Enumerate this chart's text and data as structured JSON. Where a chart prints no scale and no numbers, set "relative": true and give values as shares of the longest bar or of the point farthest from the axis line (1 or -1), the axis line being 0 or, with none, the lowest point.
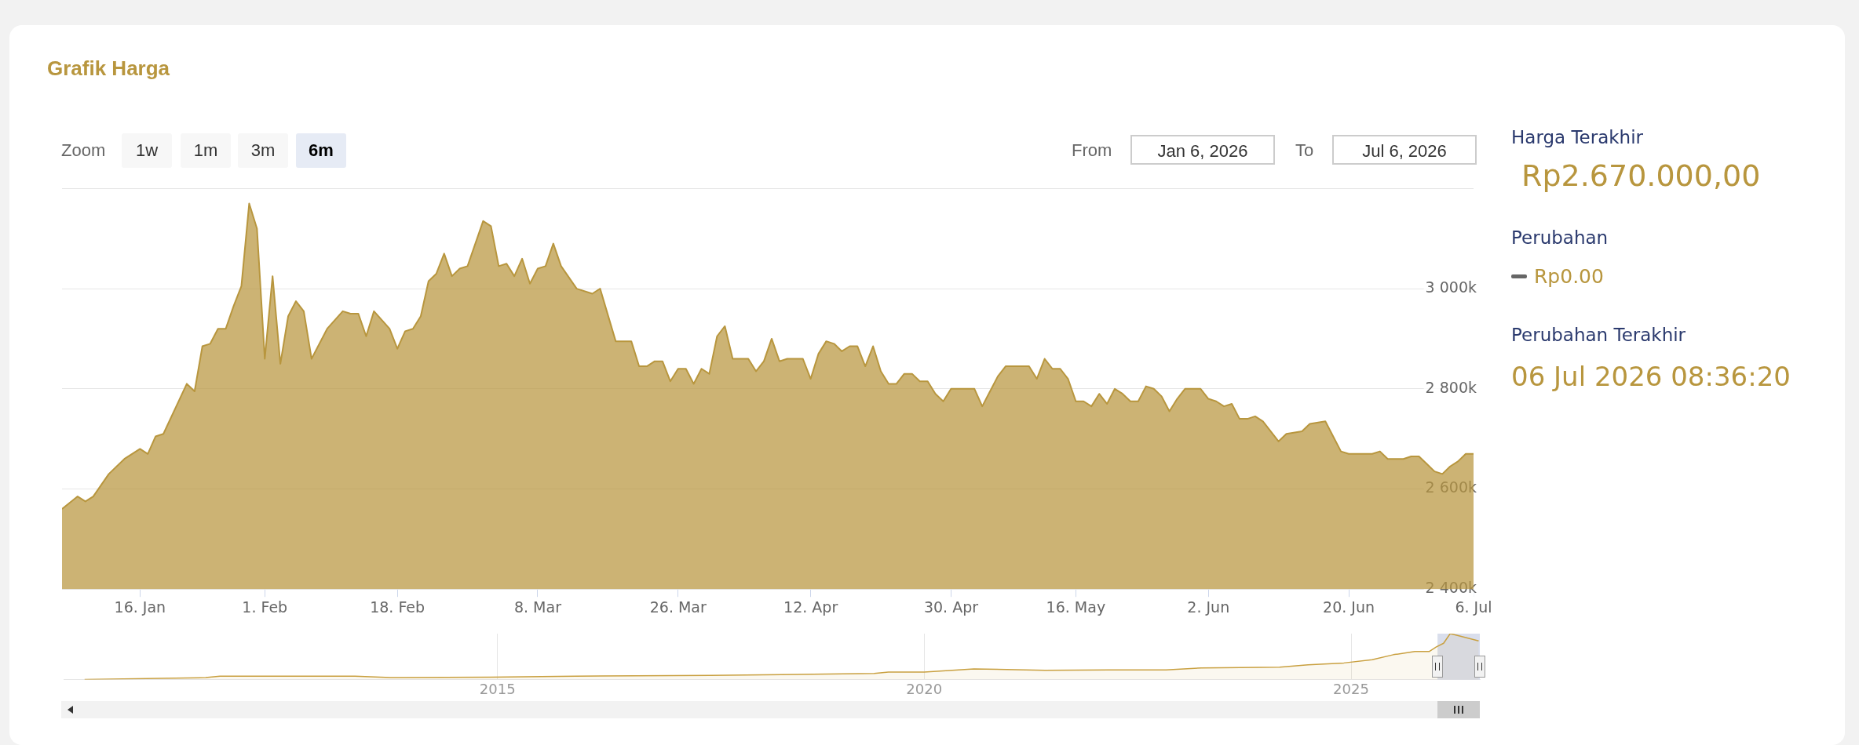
{
  "chart_data": [
    {
      "type": "area",
      "title": "Grafik Harga",
      "annotations": [
        "Zoom",
        "1w",
        "1m",
        "3m",
        "6m",
        "From",
        "Jan 6, 2026",
        "To",
        "Jul 6, 2026"
      ],
      "x": [
        "2026-01-06",
        "2026-01-08",
        "2026-01-09",
        "2026-01-10",
        "2026-01-12",
        "2026-01-14",
        "2026-01-16",
        "2026-01-17",
        "2026-01-18",
        "2026-01-19",
        "2026-01-22",
        "2026-01-23",
        "2026-01-24",
        "2026-01-25",
        "2026-01-26",
        "2026-01-27",
        "2026-01-28",
        "2026-01-29",
        "2026-01-30",
        "2026-01-31",
        "2026-02-01",
        "2026-02-02",
        "2026-02-03",
        "2026-02-04",
        "2026-02-05",
        "2026-02-06",
        "2026-02-07",
        "2026-02-09",
        "2026-02-11",
        "2026-02-12",
        "2026-02-13",
        "2026-02-14",
        "2026-02-15",
        "2026-02-17",
        "2026-02-18",
        "2026-02-19",
        "2026-02-20",
        "2026-02-21",
        "2026-02-22",
        "2026-02-23",
        "2026-02-24",
        "2026-02-25",
        "2026-02-26",
        "2026-02-27",
        "2026-03-01",
        "2026-03-02",
        "2026-03-03",
        "2026-03-04",
        "2026-03-05",
        "2026-03-06",
        "2026-03-07",
        "2026-03-08",
        "2026-03-09",
        "2026-03-10",
        "2026-03-11",
        "2026-03-13",
        "2026-03-15",
        "2026-03-16",
        "2026-03-18",
        "2026-03-20",
        "2026-03-21",
        "2026-03-22",
        "2026-03-23",
        "2026-03-24",
        "2026-03-25",
        "2026-03-26",
        "2026-03-27",
        "2026-03-28",
        "2026-03-29",
        "2026-03-30",
        "2026-03-31",
        "2026-04-01",
        "2026-04-02",
        "2026-04-04",
        "2026-04-05",
        "2026-04-06",
        "2026-04-07",
        "2026-04-08",
        "2026-04-09",
        "2026-04-11",
        "2026-04-12",
        "2026-04-13",
        "2026-04-14",
        "2026-04-15",
        "2026-04-16",
        "2026-04-17",
        "2026-04-18",
        "2026-04-19",
        "2026-04-20",
        "2026-04-21",
        "2026-04-22",
        "2026-04-23",
        "2026-04-24",
        "2026-04-25",
        "2026-04-26",
        "2026-04-27",
        "2026-04-28",
        "2026-04-29",
        "2026-04-30",
        "2026-05-01",
        "2026-05-03",
        "2026-05-04",
        "2026-05-05",
        "2026-05-06",
        "2026-05-07",
        "2026-05-10",
        "2026-05-11",
        "2026-05-12",
        "2026-05-13",
        "2026-05-14",
        "2026-05-15",
        "2026-05-16",
        "2026-05-17",
        "2026-05-18",
        "2026-05-19",
        "2026-05-20",
        "2026-05-21",
        "2026-05-22",
        "2026-05-23",
        "2026-05-24",
        "2026-05-25",
        "2026-05-26",
        "2026-05-27",
        "2026-05-28",
        "2026-05-29",
        "2026-05-30",
        "2026-06-01",
        "2026-06-02",
        "2026-06-03",
        "2026-06-04",
        "2026-06-05",
        "2026-06-06",
        "2026-06-07",
        "2026-06-08",
        "2026-06-09",
        "2026-06-10",
        "2026-06-11",
        "2026-06-12",
        "2026-06-14",
        "2026-06-15",
        "2026-06-17",
        "2026-06-18",
        "2026-06-19",
        "2026-06-20",
        "2026-06-23",
        "2026-06-24",
        "2026-06-25",
        "2026-06-27",
        "2026-06-28",
        "2026-06-29",
        "2026-06-30",
        "2026-07-01",
        "2026-07-02",
        "2026-07-03",
        "2026-07-04",
        "2026-07-05",
        "2026-07-06"
      ],
      "series": [
        {
          "color": "#b8963e",
          "values": [
            2560000,
            2585000,
            2575000,
            2585000,
            2630000,
            2660000,
            2680000,
            2670000,
            2705000,
            2710000,
            2810000,
            2795000,
            2885000,
            2890000,
            2920000,
            2920000,
            2965000,
            3005000,
            3170000,
            3120000,
            2860000,
            3025000,
            2850000,
            2945000,
            2975000,
            2955000,
            2860000,
            2920000,
            2955000,
            2950000,
            2950000,
            2905000,
            2955000,
            2920000,
            2880000,
            2915000,
            2920000,
            2945000,
            3015000,
            3030000,
            3070000,
            3025000,
            3040000,
            3045000,
            3135000,
            3125000,
            3045000,
            3050000,
            3025000,
            3060000,
            3010000,
            3040000,
            3045000,
            3090000,
            3045000,
            3000000,
            2990000,
            3000000,
            2895000,
            2895000,
            2845000,
            2845000,
            2855000,
            2855000,
            2815000,
            2840000,
            2840000,
            2810000,
            2840000,
            2830000,
            2905000,
            2925000,
            2860000,
            2860000,
            2835000,
            2855000,
            2900000,
            2855000,
            2860000,
            2860000,
            2820000,
            2870000,
            2895000,
            2890000,
            2875000,
            2885000,
            2885000,
            2845000,
            2885000,
            2835000,
            2810000,
            2810000,
            2830000,
            2830000,
            2815000,
            2815000,
            2790000,
            2775000,
            2800000,
            2800000,
            2800000,
            2765000,
            2795000,
            2825000,
            2845000,
            2845000,
            2820000,
            2860000,
            2840000,
            2840000,
            2820000,
            2775000,
            2775000,
            2765000,
            2790000,
            2770000,
            2800000,
            2790000,
            2775000,
            2775000,
            2805000,
            2800000,
            2785000,
            2755000,
            2780000,
            2800000,
            2800000,
            2780000,
            2775000,
            2765000,
            2770000,
            2740000,
            2740000,
            2745000,
            2735000,
            2715000,
            2695000,
            2710000,
            2715000,
            2730000,
            2735000,
            2705000,
            2675000,
            2670000,
            2670000,
            2675000,
            2660000,
            2660000,
            2665000,
            2665000,
            2650000,
            2635000,
            2630000,
            2645000,
            2655000,
            2670000,
            2670000
          ]
        }
      ],
      "xlim": [
        "2026-01-06",
        "2026-07-06"
      ],
      "xticks": [
        {
          "value": "2026-01-16",
          "label": "16. Jan"
        },
        {
          "value": "2026-02-01",
          "label": "1. Feb"
        },
        {
          "value": "2026-02-18",
          "label": "18. Feb"
        },
        {
          "value": "2026-03-08",
          "label": "8. Mar"
        },
        {
          "value": "2026-03-26",
          "label": "26. Mar"
        },
        {
          "value": "2026-04-12",
          "label": "12. Apr"
        },
        {
          "value": "2026-04-30",
          "label": "30. Apr"
        },
        {
          "value": "2026-05-16",
          "label": "16. May"
        },
        {
          "value": "2026-06-02",
          "label": "2. Jun"
        },
        {
          "value": "2026-06-20",
          "label": "20. Jun"
        },
        {
          "value": "2026-07-06",
          "label": "6. Jul"
        }
      ],
      "ylim": [
        2400000,
        3200000
      ],
      "yticks": [
        {
          "value": 2400000,
          "label": "2 400k"
        },
        {
          "value": 2600000,
          "label": "2 600k"
        },
        {
          "value": 2800000,
          "label": "2 800k"
        },
        {
          "value": 3000000,
          "label": "3 000k"
        },
        {
          "value": 3200000,
          "label": null
        }
      ],
      "grid": "y",
      "marker": "none"
    },
    {
      "type": "area",
      "relative": true,
      "x": [
        "2010-03",
        "2011-08",
        "2011-10",
        "2013-05",
        "2013-10",
        "2014-12",
        "2015-12",
        "2017-07",
        "2019-06",
        "2019-08",
        "2020-01",
        "2020-08",
        "2021-06",
        "2022-03",
        "2022-11",
        "2023-04",
        "2024-03",
        "2024-07",
        "2024-12",
        "2025-04",
        "2025-07",
        "2025-10",
        "2025-12",
        "2026-01",
        "2026-02",
        "2026-03",
        "2026-04",
        "2026-07"
      ],
      "series": [
        {
          "color": "#c9a040",
          "values": [
            0,
            0.04,
            0.07,
            0.07,
            0.04,
            0.05,
            0.07,
            0.09,
            0.13,
            0.16,
            0.16,
            0.23,
            0.2,
            0.21,
            0.21,
            0.25,
            0.27,
            0.32,
            0.36,
            0.43,
            0.54,
            0.61,
            0.61,
            0.71,
            0.79,
            1,
            0.96,
            0.84
          ]
        }
      ],
      "xlim": [
        "2009-12",
        "2026-07-06"
      ],
      "xticks": [
        "2015",
        "2020",
        "2025"
      ],
      "grid": "x",
      "marker": "none",
      "bands": [
        {
          "axis": "x",
          "from": "2026-01-06",
          "to": "2026-07-06",
          "color": "#ccd3e6"
        }
      ]
    },
    {
      "type": "other",
      "annotations": [
        "Harga Terakhir",
        "Rp2.670.000,00",
        "Perubahan",
        "Rp0.00",
        "Perubahan Terakhir",
        "06 Jul 2026 08:36:20"
      ]
    }
  ]
}
